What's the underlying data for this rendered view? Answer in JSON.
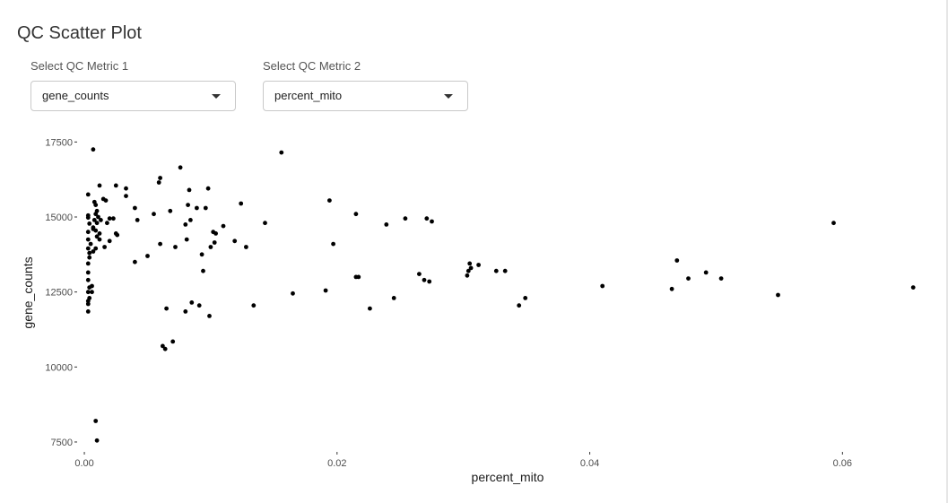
{
  "page": {
    "title": "QC Scatter Plot"
  },
  "controls": {
    "metric1": {
      "label": "Select QC Metric 1",
      "value": "gene_counts"
    },
    "metric2": {
      "label": "Select QC Metric 2",
      "value": "percent_mito"
    },
    "dropdown_icon": "caret-down-icon"
  },
  "chart_data": {
    "type": "scatter",
    "xlabel": "percent_mito",
    "ylabel": "gene_counts",
    "xlim": [
      -0.0005,
      0.0675
    ],
    "ylim": [
      7200,
      17750
    ],
    "xticks": [
      0.0,
      0.02,
      0.04,
      0.06
    ],
    "xtick_labels": [
      "0.00",
      "0.02",
      "0.04",
      "0.06"
    ],
    "yticks": [
      7500,
      10000,
      12500,
      15000,
      17500
    ],
    "ytick_labels": [
      "7500",
      "10000",
      "12500",
      "15000",
      "17500"
    ],
    "grid": false,
    "point_color": "#000000",
    "points": [
      [
        0.0007,
        17250
      ],
      [
        0.0003,
        15750
      ],
      [
        0.0003,
        15050
      ],
      [
        0.0003,
        14980
      ],
      [
        0.0004,
        14780
      ],
      [
        0.0003,
        14500
      ],
      [
        0.0003,
        14250
      ],
      [
        0.0003,
        13950
      ],
      [
        0.0004,
        13800
      ],
      [
        0.0004,
        13650
      ],
      [
        0.0003,
        13450
      ],
      [
        0.0003,
        13150
      ],
      [
        0.0003,
        12900
      ],
      [
        0.0004,
        12650
      ],
      [
        0.0003,
        12500
      ],
      [
        0.0004,
        12300
      ],
      [
        0.0003,
        12200
      ],
      [
        0.0003,
        12100
      ],
      [
        0.0003,
        11850
      ],
      [
        0.0008,
        15500
      ],
      [
        0.0009,
        15100
      ],
      [
        0.0008,
        14900
      ],
      [
        0.0007,
        14650
      ],
      [
        0.0009,
        14550
      ],
      [
        0.001,
        14800
      ],
      [
        0.001,
        14350
      ],
      [
        0.0011,
        15000
      ],
      [
        0.0012,
        14250
      ],
      [
        0.0012,
        14450
      ],
      [
        0.0013,
        14900
      ],
      [
        0.0015,
        15600
      ],
      [
        0.0017,
        15550
      ],
      [
        0.0018,
        14800
      ],
      [
        0.002,
        14950
      ],
      [
        0.002,
        14200
      ],
      [
        0.0023,
        14950
      ],
      [
        0.0025,
        14450
      ],
      [
        0.0026,
        14400
      ],
      [
        0.0012,
        16050
      ],
      [
        0.0007,
        14600
      ],
      [
        0.0007,
        13850
      ],
      [
        0.0009,
        13950
      ],
      [
        0.0006,
        12700
      ],
      [
        0.0006,
        12500
      ],
      [
        0.0009,
        15400
      ],
      [
        0.001,
        15200
      ],
      [
        0.0005,
        14100
      ],
      [
        0.0016,
        14000
      ],
      [
        0.0025,
        16050
      ],
      [
        0.0033,
        15950
      ],
      [
        0.0033,
        15700
      ],
      [
        0.004,
        15300
      ],
      [
        0.004,
        13500
      ],
      [
        0.0042,
        14900
      ],
      [
        0.005,
        13700
      ],
      [
        0.0055,
        15100
      ],
      [
        0.0059,
        16150
      ],
      [
        0.006,
        16300
      ],
      [
        0.006,
        14100
      ],
      [
        0.0064,
        10600
      ],
      [
        0.0062,
        10700
      ],
      [
        0.0065,
        11950
      ],
      [
        0.0068,
        15200
      ],
      [
        0.007,
        10850
      ],
      [
        0.0072,
        14000
      ],
      [
        0.0076,
        16650
      ],
      [
        0.008,
        14750
      ],
      [
        0.008,
        11850
      ],
      [
        0.0081,
        14250
      ],
      [
        0.0082,
        15400
      ],
      [
        0.0083,
        15900
      ],
      [
        0.0084,
        14900
      ],
      [
        0.0085,
        12150
      ],
      [
        0.0089,
        15300
      ],
      [
        0.0091,
        12050
      ],
      [
        0.0093,
        13750
      ],
      [
        0.0094,
        13200
      ],
      [
        0.0096,
        15300
      ],
      [
        0.0098,
        15950
      ],
      [
        0.0099,
        11700
      ],
      [
        0.01,
        14000
      ],
      [
        0.0102,
        14500
      ],
      [
        0.0103,
        14150
      ],
      [
        0.0104,
        14450
      ],
      [
        0.011,
        14700
      ],
      [
        0.0119,
        14200
      ],
      [
        0.0124,
        15450
      ],
      [
        0.0128,
        14000
      ],
      [
        0.0134,
        12050
      ],
      [
        0.0143,
        14800
      ],
      [
        0.0156,
        17150
      ],
      [
        0.0165,
        12450
      ],
      [
        0.0191,
        12550
      ],
      [
        0.0194,
        15550
      ],
      [
        0.0197,
        14100
      ],
      [
        0.0215,
        15100
      ],
      [
        0.0215,
        13000
      ],
      [
        0.0217,
        13000
      ],
      [
        0.0226,
        11950
      ],
      [
        0.0239,
        14750
      ],
      [
        0.0245,
        12300
      ],
      [
        0.0254,
        14950
      ],
      [
        0.0265,
        13100
      ],
      [
        0.0269,
        12900
      ],
      [
        0.0271,
        14950
      ],
      [
        0.0273,
        12850
      ],
      [
        0.0275,
        14850
      ],
      [
        0.0303,
        13050
      ],
      [
        0.0304,
        13200
      ],
      [
        0.0305,
        13450
      ],
      [
        0.0306,
        13300
      ],
      [
        0.0312,
        13400
      ],
      [
        0.0326,
        13200
      ],
      [
        0.0333,
        13200
      ],
      [
        0.0344,
        12050
      ],
      [
        0.0349,
        12300
      ],
      [
        0.041,
        12700
      ],
      [
        0.0465,
        12600
      ],
      [
        0.0469,
        13550
      ],
      [
        0.0478,
        12950
      ],
      [
        0.0492,
        13150
      ],
      [
        0.0504,
        12950
      ],
      [
        0.0549,
        12400
      ],
      [
        0.0593,
        14800
      ],
      [
        0.0656,
        12650
      ],
      [
        0.0009,
        8200
      ],
      [
        0.001,
        7550
      ]
    ]
  }
}
